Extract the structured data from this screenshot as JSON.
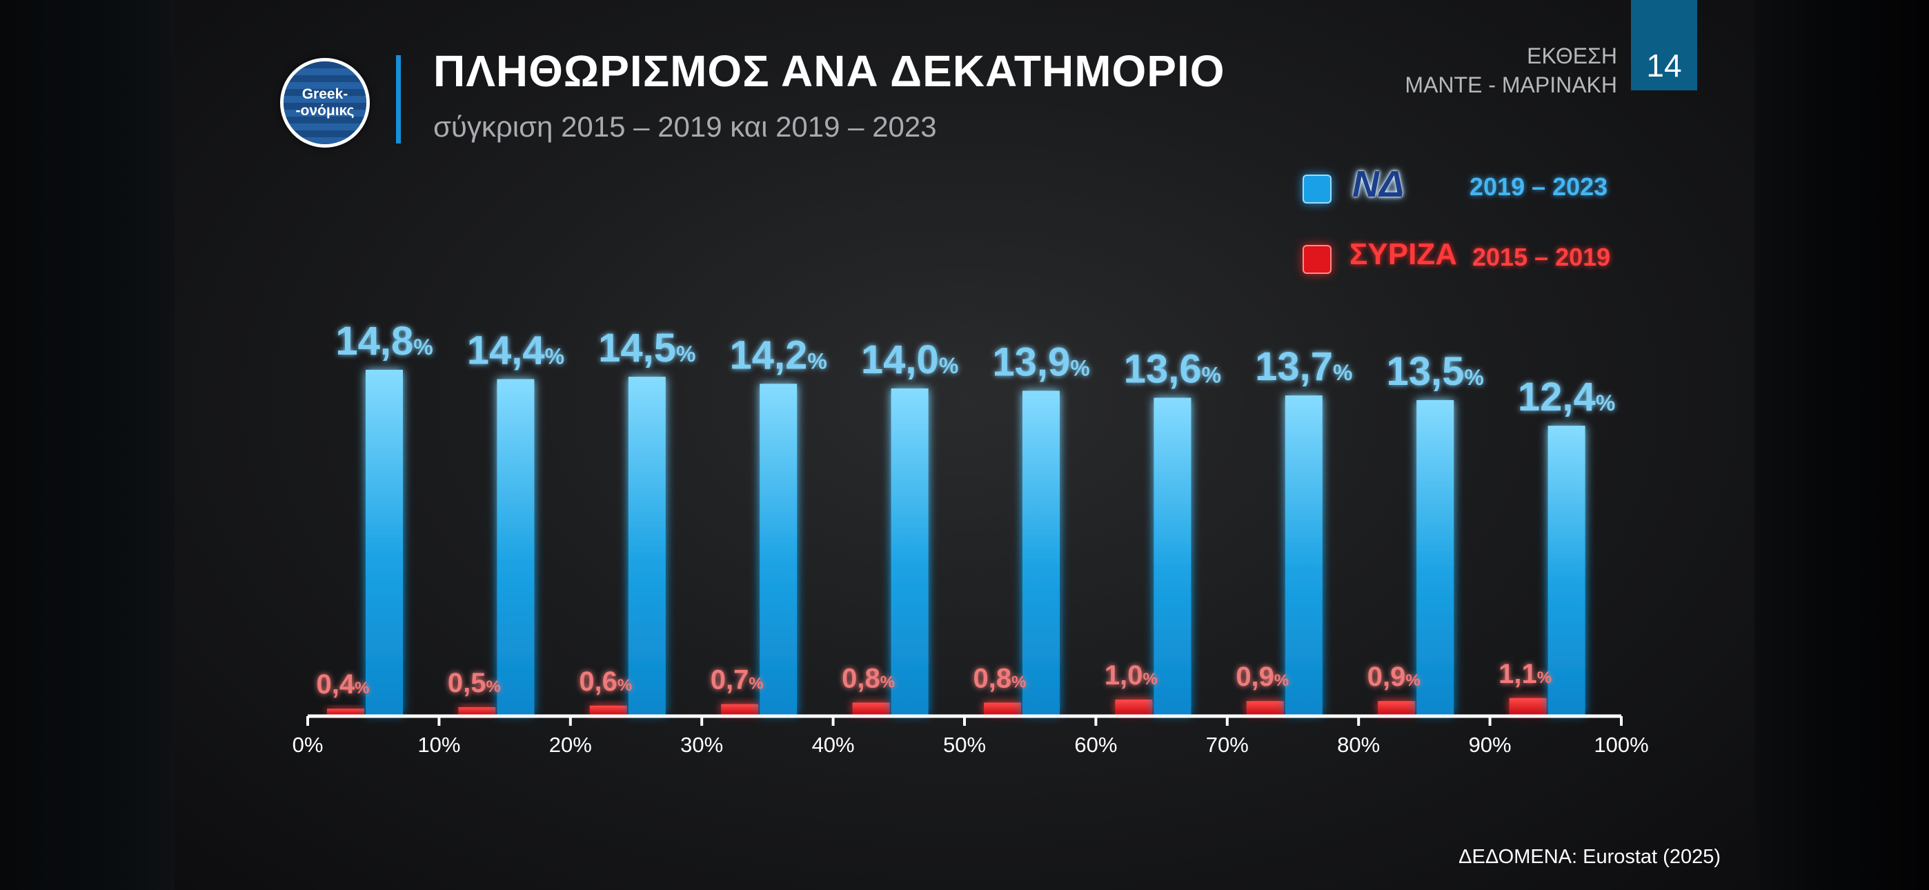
{
  "header": {
    "logo_line1": "Greek-",
    "logo_line2": "-ονόμικς",
    "title": "ΠΛΗΘΩΡΙΣΜΟΣ ΑΝΑ ΔΕΚΑΤΗΜΟΡΙΟ",
    "subtitle": "σύγκριση 2015 – 2019 και 2019 – 2023",
    "report_line1": "ΕΚΘΕΣΗ",
    "report_line2": "ΜΑΝΤΕ - ΜΑΡΙΝΑΚΗ",
    "page_number": "14"
  },
  "legend": [
    {
      "party": "ΝΔ",
      "years": "2019 – 2023",
      "color": "#1aa0e6"
    },
    {
      "party": "ΣΥΡΙΖΑ",
      "years": "2015 – 2019",
      "color": "#e0161c"
    }
  ],
  "footer": {
    "source": "ΔΕΔΟΜΕΝΑ: Eurostat (2025)"
  },
  "chart_data": {
    "type": "bar",
    "title": "ΠΛΗΘΩΡΙΣΜΟΣ ΑΝΑ ΔΕΚΑΤΗΜΟΡΙΟ",
    "subtitle": "σύγκριση 2015 – 2019 και 2019 – 2023",
    "xlabel": "",
    "ylabel": "",
    "x_ticks": [
      "0%",
      "10%",
      "20%",
      "30%",
      "40%",
      "50%",
      "60%",
      "70%",
      "80%",
      "90%",
      "100%"
    ],
    "categories": [
      "0–10%",
      "10–20%",
      "20–30%",
      "30–40%",
      "40–50%",
      "50–60%",
      "60–70%",
      "70–80%",
      "80–90%",
      "90–100%"
    ],
    "series": [
      {
        "name": "ΣΥΡΙΖΑ 2015 – 2019",
        "color": "#e0161c",
        "values": [
          0.4,
          0.5,
          0.6,
          0.7,
          0.8,
          0.8,
          1.0,
          0.9,
          0.9,
          1.1
        ],
        "labels": [
          "0,4",
          "0,5",
          "0,6",
          "0,7",
          "0,8",
          "0,8",
          "1,0",
          "0,9",
          "0,9",
          "1,1"
        ]
      },
      {
        "name": "ΝΔ 2019 – 2023",
        "color": "#1aa0e6",
        "values": [
          14.8,
          14.4,
          14.5,
          14.2,
          14.0,
          13.9,
          13.6,
          13.7,
          13.5,
          12.4
        ],
        "labels": [
          "14,8",
          "14,4",
          "14,5",
          "14,2",
          "14,0",
          "13,9",
          "13,6",
          "13,7",
          "13,5",
          "12,4"
        ]
      }
    ],
    "label_suffix": "%",
    "ylim": [
      0,
      16
    ],
    "grid": false,
    "legend_position": "top-right"
  }
}
